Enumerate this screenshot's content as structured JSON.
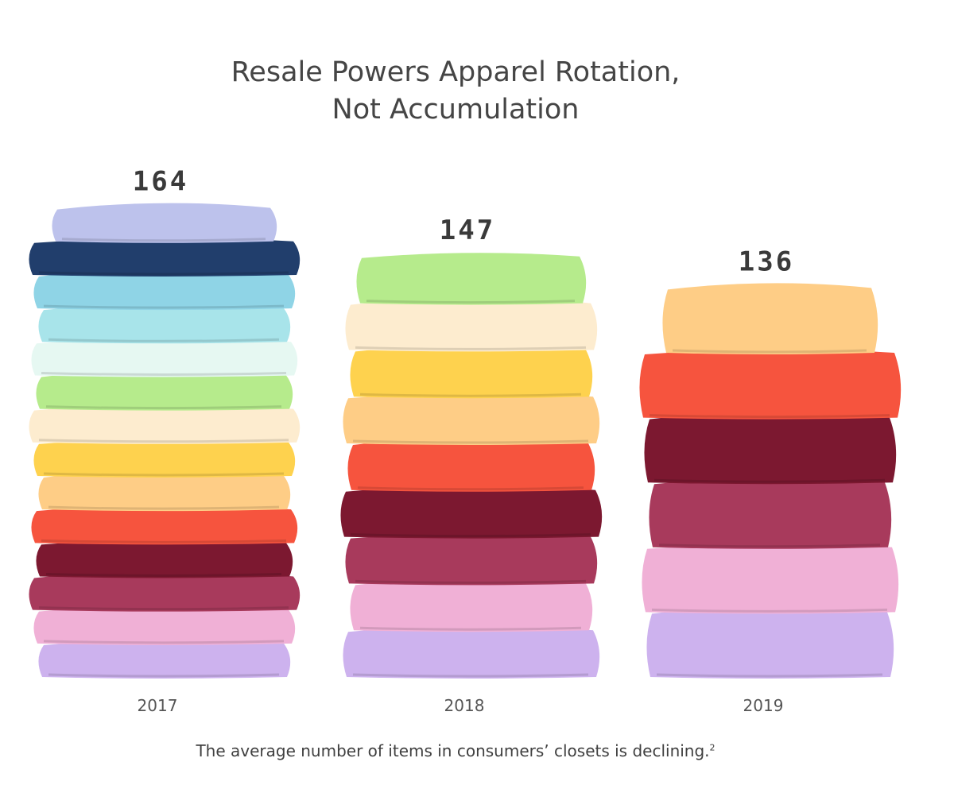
{
  "chart_data": {
    "type": "bar",
    "title_lines": [
      "Resale Powers Apparel Rotation,",
      "Not Accumulation"
    ],
    "categories": [
      "2017",
      "2018",
      "2019"
    ],
    "values": [
      164,
      147,
      136
    ],
    "caption": "The average number of items in consumers’ closets is declining.",
    "caption_note": "2",
    "xlabel": "",
    "ylabel": "",
    "grid": false,
    "legend": "none",
    "stacks": [
      [
        "#cdb2ee",
        "#f0b0d6",
        "#a83a5c",
        "#7c1830",
        "#f6543e",
        "#fecd86",
        "#fed24e",
        "#fdeccf",
        "#b6eb8c",
        "#e6f8f2",
        "#a8e4ea",
        "#8fd4e6",
        "#213e6c",
        "#bdc2ec"
      ],
      [
        "#cdb2ee",
        "#f0b0d6",
        "#a83a5c",
        "#7c1830",
        "#f6543e",
        "#fecd86",
        "#fed24e",
        "#fdeccf",
        "#b6eb8c"
      ],
      [
        "#cdb2ee",
        "#f0b0d6",
        "#a83a5c",
        "#7c1830",
        "#f6543e",
        "#fecd86"
      ]
    ]
  }
}
